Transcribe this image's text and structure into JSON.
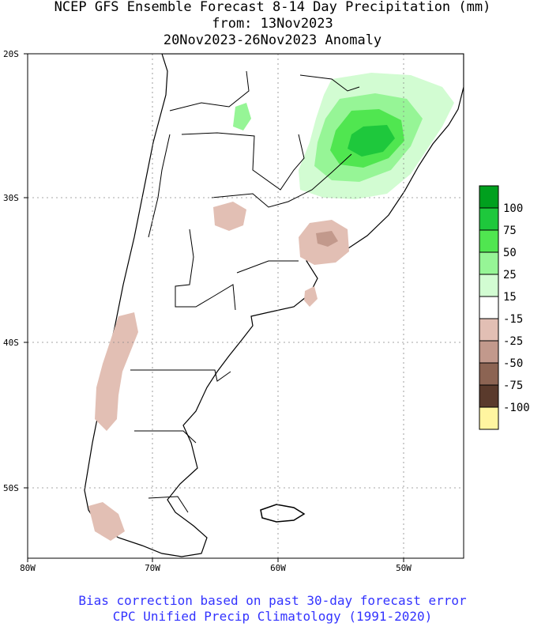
{
  "title": {
    "line1": "NCEP GFS Ensemble Forecast 8-14 Day Precipitation (mm)",
    "line2": "from: 13Nov2023",
    "line3": "20Nov2023-26Nov2023 Anomaly"
  },
  "axes": {
    "lat_labels": [
      "20S",
      "30S",
      "40S",
      "50S"
    ],
    "lon_labels": [
      "80W",
      "70W",
      "60W",
      "50W"
    ]
  },
  "legend": {
    "labels": [
      "100",
      "75",
      "50",
      "25",
      "15",
      "-15",
      "-25",
      "-50",
      "-75",
      "-100"
    ],
    "colors": [
      "#00a01e",
      "#1ec83c",
      "#50e650",
      "#96f596",
      "#d2fcd2",
      "#ffffff",
      "#e2bfb4",
      "#c2998c",
      "#8c6453",
      "#5a3a2c",
      "#fff5a0"
    ]
  },
  "footer": {
    "line1": "Bias correction based on past 30-day forecast error",
    "line2": "CPC Unified Precip Climatology (1991-2020)",
    "color": "#3333ff"
  },
  "chart_data": {
    "type": "heatmap",
    "title": "NCEP GFS Ensemble Forecast 8-14 Day Precipitation (mm)",
    "subtitle": "from: 13Nov2023 / 20Nov2023-26Nov2023 Anomaly",
    "x_range": [
      "80W",
      "45W"
    ],
    "y_range": [
      "55S",
      "20S"
    ],
    "grid": true,
    "legend_placement": "right",
    "color_scale": [
      100,
      75,
      50,
      25,
      15,
      -15,
      -25,
      -50,
      -75,
      -100
    ]
  }
}
